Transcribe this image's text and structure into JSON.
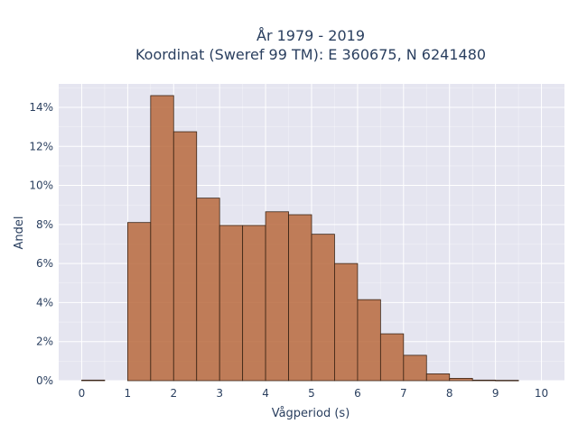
{
  "chart_data": {
    "type": "bar",
    "title_lines": [
      "År 1979 - 2019",
      "Koordinat (Sweref 99 TM): E 360675, N 6241480"
    ],
    "xlabel": "Vågperiod (s)",
    "ylabel": "Andel",
    "xlim": [
      -0.5,
      10.5
    ],
    "ylim": [
      0,
      15.2
    ],
    "x_ticks": [
      0,
      1,
      2,
      3,
      4,
      5,
      6,
      7,
      8,
      9,
      10
    ],
    "x_tick_labels": [
      "0",
      "1",
      "2",
      "3",
      "4",
      "5",
      "6",
      "7",
      "8",
      "9",
      "10"
    ],
    "y_ticks": [
      0,
      2,
      4,
      6,
      8,
      10,
      12,
      14
    ],
    "y_tick_labels": [
      "0%",
      "2%",
      "4%",
      "6%",
      "8%",
      "10%",
      "12%",
      "14%"
    ],
    "bin_width": 0.5,
    "bins": [
      {
        "x0": 0.0,
        "value": 0.03
      },
      {
        "x0": 1.0,
        "value": 8.1
      },
      {
        "x0": 1.5,
        "value": 14.6
      },
      {
        "x0": 2.0,
        "value": 12.75
      },
      {
        "x0": 2.5,
        "value": 9.35
      },
      {
        "x0": 3.0,
        "value": 7.95
      },
      {
        "x0": 3.5,
        "value": 7.95
      },
      {
        "x0": 4.0,
        "value": 8.65
      },
      {
        "x0": 4.5,
        "value": 8.5
      },
      {
        "x0": 5.0,
        "value": 7.5
      },
      {
        "x0": 5.5,
        "value": 6.0
      },
      {
        "x0": 6.0,
        "value": 4.15
      },
      {
        "x0": 6.5,
        "value": 2.4
      },
      {
        "x0": 7.0,
        "value": 1.3
      },
      {
        "x0": 7.5,
        "value": 0.35
      },
      {
        "x0": 8.0,
        "value": 0.12
      },
      {
        "x0": 8.5,
        "value": 0.03
      },
      {
        "x0": 9.0,
        "value": 0.02
      }
    ],
    "grid": true,
    "colors": {
      "bar": "#b86a3d",
      "plot_bg": "#e5e5f0",
      "bar_edge": "#3a2416"
    }
  }
}
